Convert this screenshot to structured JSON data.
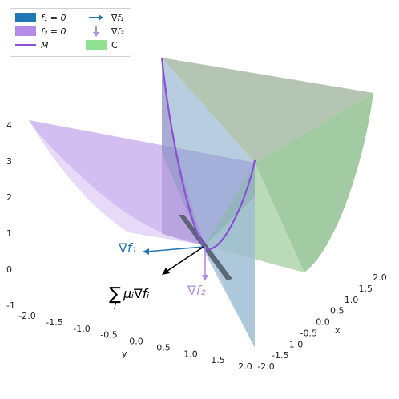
{
  "legend": {
    "f1_zero": "f₁ = 0",
    "f2_zero": "f₂ = 0",
    "manifold": "M",
    "grad_f1": "∇f₁",
    "grad_f2": "∇f₂",
    "c_region": "C"
  },
  "annotations": {
    "grad_f1": "∇f₁",
    "grad_f2": "∇f₂",
    "sum": "∑ᵢ μᵢ∇fᵢ",
    "sum_sym": "∑",
    "sum_sub": "i",
    "sum_body": "μᵢ∇fᵢ"
  },
  "colors": {
    "f1_surface": "#1f77b4",
    "f2_surface": "#b48be8",
    "manifold": "#8a4fd6",
    "grad_f1": "#1f77b4",
    "grad_f2": "#b48be8",
    "c_region": "#8fe08f",
    "c_region_fill": "#9bc79b"
  },
  "chart_data": {
    "type": "surface3d",
    "title": "",
    "xlabel": "x",
    "ylabel": "y",
    "zlabel": "",
    "xlim": [
      -2.0,
      2.0
    ],
    "ylim": [
      -2.0,
      2.0
    ],
    "zlim": [
      -1,
      4
    ],
    "x_ticks": [
      "-2.0",
      "-1.5",
      "-1.0",
      "-0.5",
      "0.0",
      "0.5",
      "1.0",
      "1.5",
      "2.0"
    ],
    "y_ticks": [
      "-2.0",
      "-1.5",
      "-1.0",
      "-0.5",
      "0.0",
      "0.5",
      "1.0",
      "1.5",
      "2.0"
    ],
    "z_ticks": [
      "4",
      "3",
      "2",
      "1",
      "0",
      "-1"
    ],
    "series": [
      {
        "name": "f₁ = 0",
        "kind": "surface"
      },
      {
        "name": "f₂ = 0",
        "kind": "surface"
      },
      {
        "name": "M",
        "kind": "curve"
      },
      {
        "name": "∇f₁",
        "kind": "vector"
      },
      {
        "name": "∇f₂",
        "kind": "vector"
      },
      {
        "name": "C",
        "kind": "surface"
      }
    ]
  }
}
